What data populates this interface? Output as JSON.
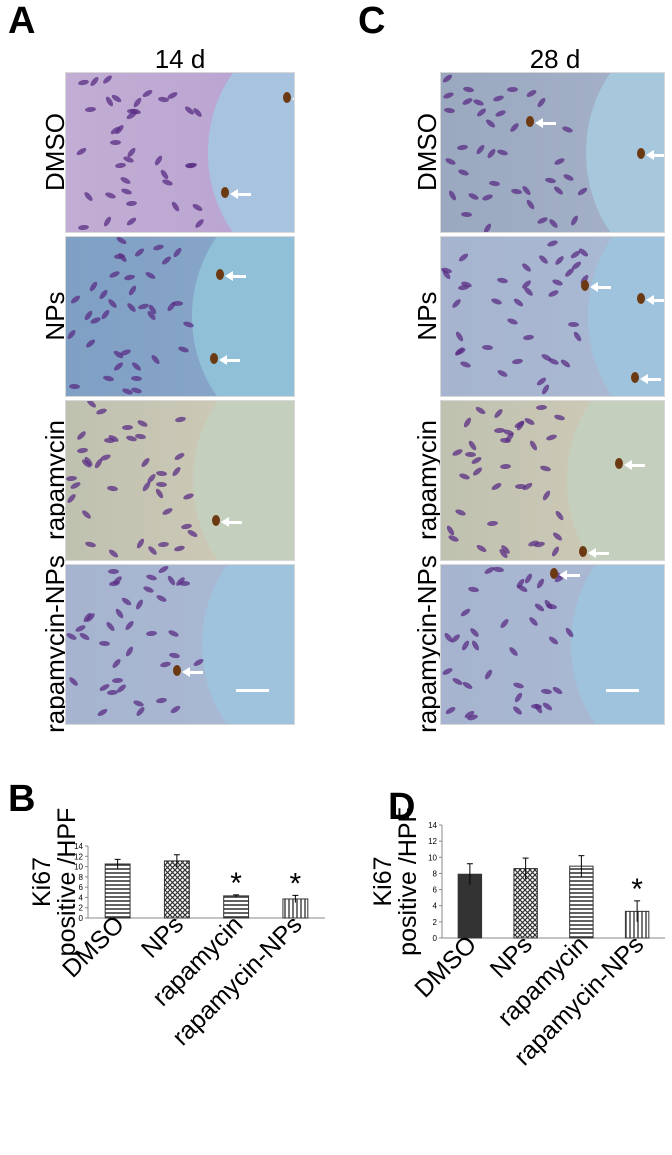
{
  "panels": {
    "A": "A",
    "B": "B",
    "C": "C",
    "D": "D"
  },
  "columns": {
    "left_title": "14 d",
    "right_title": "28 d"
  },
  "row_labels": [
    "DMSO",
    "NPs",
    "rapamycin",
    "rapamycin-NPs"
  ],
  "colors": {
    "stain_bg_purple": "#b8a6cf",
    "stain_bg_blue": "#7ea7c8",
    "stain_bg_beige": "#c9c2ad",
    "lumen_blue": "#9fc0dc",
    "lumen_beige": "#c5ceb9",
    "nucleus": "#5a2d84",
    "ki67_positive": "#6b3a12",
    "bar_dmso_B": "#555555",
    "bar_dmso_D": "#333333"
  },
  "micrographs": {
    "A": [
      {
        "row": "DMSO",
        "tone": "purple"
      },
      {
        "row": "NPs",
        "tone": "blue"
      },
      {
        "row": "rapamycin",
        "tone": "beige"
      },
      {
        "row": "rapamycin-NPs",
        "tone": "blue_light"
      }
    ],
    "C": [
      {
        "row": "DMSO",
        "tone": "blue_grey"
      },
      {
        "row": "NPs",
        "tone": "blue_light"
      },
      {
        "row": "rapamycin",
        "tone": "beige"
      },
      {
        "row": "rapamycin-NPs",
        "tone": "blue_light"
      }
    ]
  },
  "chart_data": [
    {
      "panel": "B",
      "type": "bar",
      "categories": [
        "DMSO",
        "NPs",
        "rapamycin",
        "rapamycin-NPs"
      ],
      "values": [
        10.5,
        11.1,
        4.3,
        3.7
      ],
      "errors": [
        0.9,
        1.2,
        0.2,
        0.7
      ],
      "significant": [
        false,
        false,
        true,
        true
      ],
      "significance_marker": "*",
      "patterns": [
        "horizontal-lines",
        "crosshatch",
        "horizontal-lines",
        "vertical-lines"
      ],
      "ylabel_line1": "Ki67",
      "ylabel_line2": "positive /HPF",
      "ylim": [
        0,
        14
      ],
      "yticks": [
        "0",
        "2",
        "4",
        "6",
        "8",
        "10",
        "12",
        "14"
      ],
      "grid": false
    },
    {
      "panel": "D",
      "type": "bar",
      "categories": [
        "DMSO",
        "NPs",
        "rapamycin",
        "rapamycin-NPs"
      ],
      "values": [
        7.9,
        8.6,
        8.9,
        3.3
      ],
      "errors": [
        1.3,
        1.3,
        1.3,
        1.3
      ],
      "significant": [
        false,
        false,
        false,
        true
      ],
      "significance_marker": "*",
      "patterns": [
        "solid",
        "crosshatch",
        "horizontal-lines",
        "vertical-lines"
      ],
      "ylabel_line1": "Ki67",
      "ylabel_line2": "positive /HPF",
      "ylim": [
        0,
        14
      ],
      "yticks": [
        "0",
        "2",
        "4",
        "6",
        "8",
        "10",
        "12",
        "14"
      ],
      "grid": false
    }
  ]
}
